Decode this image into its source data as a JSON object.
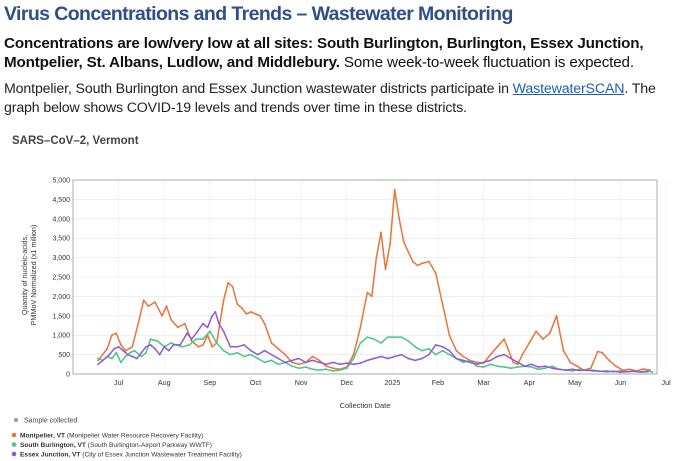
{
  "header": {
    "title": "Virus Concentrations and Trends – Wastewater Monitoring",
    "summary_bold": "Concentrations are low/very low at all sites: South Burlington, Burlington, Essex Junction, Montpelier, St. Albans, Ludlow, and Middlebury.",
    "summary_normal": " Some week-to-week fluctuation is expected.",
    "para_text1": "Montpelier, South Burlington and Essex Junction wastewater districts participate in ",
    "para_link": "WastewaterSCAN",
    "para_text2": ". The graph below shows COVID-19 levels and trends over time in these districts."
  },
  "colors": {
    "title": "#2f4e8a",
    "link": "#1a5fb4",
    "montpelier": "#e8743b",
    "south_burlington": "#4cc48a",
    "essex_junction": "#8e5bd6",
    "sample": "#9a9a9a"
  },
  "chart_data": {
    "type": "line",
    "title": "SARS–CoV–2, Vermont",
    "xlabel": "Collection Date",
    "ylabel": "Quantity of nucleic-acids, PMMoV Normalized (x1 million)",
    "ylim": [
      0,
      5000
    ],
    "yticks": [
      "0",
      "500",
      "1,000",
      "1,500",
      "2,000",
      "2,500",
      "3,000",
      "3,500",
      "4,000",
      "4,500",
      "5,000"
    ],
    "xticks": [
      "Jul",
      "Aug",
      "Sep",
      "Oct",
      "Nov",
      "Dec",
      "2025",
      "Feb",
      "Mar",
      "Apr",
      "May",
      "Jun",
      "Jul"
    ],
    "x_unit": "months since 2024-06-01",
    "grid": true,
    "legend": {
      "placement": "bottom-left",
      "sample_label": "Sample collected",
      "entries": [
        {
          "bold": "Montpelier, VT",
          "detail": "(Montpelier Water Resource Recovery Facility)"
        },
        {
          "bold": "South Burlington, VT",
          "detail": "(South Burlington-Airport Parkway WWTF)"
        },
        {
          "bold": "Essex Junction, VT",
          "detail": "(City of Essex Junction Wastewater Treatment Facility)"
        }
      ]
    },
    "series": [
      {
        "name": "Montpelier, VT",
        "points": [
          [
            0.55,
            350
          ],
          [
            0.75,
            650
          ],
          [
            0.85,
            1000
          ],
          [
            0.95,
            1050
          ],
          [
            1.05,
            750
          ],
          [
            1.15,
            600
          ],
          [
            1.3,
            700
          ],
          [
            1.45,
            1400
          ],
          [
            1.55,
            1900
          ],
          [
            1.65,
            1750
          ],
          [
            1.8,
            1850
          ],
          [
            1.95,
            1500
          ],
          [
            2.05,
            1750
          ],
          [
            2.15,
            1400
          ],
          [
            2.3,
            1200
          ],
          [
            2.45,
            1300
          ],
          [
            2.6,
            850
          ],
          [
            2.75,
            700
          ],
          [
            2.85,
            750
          ],
          [
            2.95,
            1000
          ],
          [
            3.05,
            700
          ],
          [
            3.15,
            800
          ],
          [
            3.3,
            1900
          ],
          [
            3.4,
            2350
          ],
          [
            3.5,
            2250
          ],
          [
            3.6,
            1800
          ],
          [
            3.7,
            1700
          ],
          [
            3.8,
            1550
          ],
          [
            3.9,
            1600
          ],
          [
            4.0,
            1550
          ],
          [
            4.1,
            1500
          ],
          [
            4.2,
            1300
          ],
          [
            4.35,
            800
          ],
          [
            4.5,
            650
          ],
          [
            4.65,
            500
          ],
          [
            4.8,
            300
          ],
          [
            4.95,
            250
          ],
          [
            5.1,
            300
          ],
          [
            5.25,
            450
          ],
          [
            5.4,
            350
          ],
          [
            5.55,
            200
          ],
          [
            5.7,
            150
          ],
          [
            5.85,
            120
          ],
          [
            6.0,
            180
          ],
          [
            6.15,
            500
          ],
          [
            6.3,
            1200
          ],
          [
            6.45,
            2100
          ],
          [
            6.55,
            2000
          ],
          [
            6.65,
            3000
          ],
          [
            6.75,
            3650
          ],
          [
            6.85,
            2700
          ],
          [
            6.95,
            3350
          ],
          [
            7.05,
            4750
          ],
          [
            7.15,
            4000
          ],
          [
            7.25,
            3400
          ],
          [
            7.35,
            3150
          ],
          [
            7.45,
            2900
          ],
          [
            7.55,
            2800
          ],
          [
            7.65,
            2850
          ],
          [
            7.8,
            2900
          ],
          [
            7.95,
            2600
          ],
          [
            8.1,
            1800
          ],
          [
            8.25,
            1000
          ],
          [
            8.4,
            600
          ],
          [
            8.55,
            450
          ],
          [
            8.7,
            350
          ],
          [
            8.85,
            300
          ],
          [
            9.0,
            280
          ],
          [
            9.15,
            500
          ],
          [
            9.3,
            700
          ],
          [
            9.45,
            900
          ],
          [
            9.55,
            600
          ],
          [
            9.65,
            300
          ],
          [
            9.75,
            250
          ],
          [
            9.85,
            500
          ],
          [
            10.0,
            800
          ],
          [
            10.15,
            1100
          ],
          [
            10.3,
            900
          ],
          [
            10.45,
            1050
          ],
          [
            10.6,
            1500
          ],
          [
            10.75,
            600
          ],
          [
            10.9,
            300
          ],
          [
            11.05,
            200
          ],
          [
            11.2,
            100
          ],
          [
            11.35,
            150
          ],
          [
            11.5,
            580
          ],
          [
            11.6,
            550
          ],
          [
            11.75,
            350
          ],
          [
            11.9,
            200
          ],
          [
            12.05,
            100
          ],
          [
            12.2,
            120
          ],
          [
            12.35,
            80
          ],
          [
            12.5,
            130
          ],
          [
            12.65,
            100
          ]
        ]
      },
      {
        "name": "South Burlington, VT",
        "points": [
          [
            0.55,
            400
          ],
          [
            0.65,
            350
          ],
          [
            0.75,
            450
          ],
          [
            0.85,
            400
          ],
          [
            0.95,
            550
          ],
          [
            1.05,
            300
          ],
          [
            1.15,
            450
          ],
          [
            1.25,
            550
          ],
          [
            1.35,
            600
          ],
          [
            1.5,
            450
          ],
          [
            1.6,
            550
          ],
          [
            1.7,
            900
          ],
          [
            1.85,
            850
          ],
          [
            2.0,
            700
          ],
          [
            2.15,
            800
          ],
          [
            2.25,
            750
          ],
          [
            2.4,
            700
          ],
          [
            2.55,
            750
          ],
          [
            2.7,
            900
          ],
          [
            2.85,
            900
          ],
          [
            3.0,
            1100
          ],
          [
            3.15,
            800
          ],
          [
            3.3,
            600
          ],
          [
            3.45,
            500
          ],
          [
            3.6,
            550
          ],
          [
            3.75,
            450
          ],
          [
            3.9,
            500
          ],
          [
            4.05,
            400
          ],
          [
            4.2,
            300
          ],
          [
            4.35,
            350
          ],
          [
            4.5,
            250
          ],
          [
            4.65,
            300
          ],
          [
            4.8,
            200
          ],
          [
            4.95,
            150
          ],
          [
            5.1,
            180
          ],
          [
            5.25,
            120
          ],
          [
            5.4,
            100
          ],
          [
            5.55,
            120
          ],
          [
            5.7,
            80
          ],
          [
            5.85,
            100
          ],
          [
            6.0,
            150
          ],
          [
            6.15,
            400
          ],
          [
            6.3,
            800
          ],
          [
            6.45,
            950
          ],
          [
            6.6,
            900
          ],
          [
            6.75,
            800
          ],
          [
            6.9,
            950
          ],
          [
            7.05,
            950
          ],
          [
            7.2,
            950
          ],
          [
            7.35,
            850
          ],
          [
            7.5,
            700
          ],
          [
            7.65,
            600
          ],
          [
            7.8,
            650
          ],
          [
            7.95,
            500
          ],
          [
            8.1,
            600
          ],
          [
            8.25,
            500
          ],
          [
            8.4,
            400
          ],
          [
            8.55,
            300
          ],
          [
            8.7,
            350
          ],
          [
            8.85,
            200
          ],
          [
            9.0,
            180
          ],
          [
            9.15,
            250
          ],
          [
            9.3,
            200
          ],
          [
            9.45,
            180
          ],
          [
            9.6,
            150
          ],
          [
            9.75,
            180
          ],
          [
            9.9,
            200
          ],
          [
            10.05,
            180
          ],
          [
            10.2,
            120
          ],
          [
            10.35,
            150
          ],
          [
            10.5,
            200
          ],
          [
            10.65,
            120
          ],
          [
            10.8,
            100
          ],
          [
            10.95,
            80
          ],
          [
            11.1,
            120
          ],
          [
            11.25,
            90
          ],
          [
            11.4,
            100
          ],
          [
            11.55,
            70
          ],
          [
            11.7,
            80
          ],
          [
            11.85,
            60
          ],
          [
            12.0,
            80
          ],
          [
            12.15,
            60
          ],
          [
            12.3,
            70
          ],
          [
            12.45,
            60
          ],
          [
            12.6,
            80
          ],
          [
            12.7,
            50
          ]
        ]
      },
      {
        "name": "Essex Junction, VT",
        "points": [
          [
            0.55,
            250
          ],
          [
            0.65,
            350
          ],
          [
            0.8,
            500
          ],
          [
            0.9,
            650
          ],
          [
            1.0,
            700
          ],
          [
            1.1,
            600
          ],
          [
            1.2,
            500
          ],
          [
            1.3,
            450
          ],
          [
            1.4,
            400
          ],
          [
            1.5,
            550
          ],
          [
            1.6,
            700
          ],
          [
            1.7,
            750
          ],
          [
            1.8,
            650
          ],
          [
            1.9,
            500
          ],
          [
            2.0,
            700
          ],
          [
            2.1,
            600
          ],
          [
            2.2,
            750
          ],
          [
            2.35,
            750
          ],
          [
            2.5,
            1050
          ],
          [
            2.6,
            900
          ],
          [
            2.7,
            1050
          ],
          [
            2.85,
            1300
          ],
          [
            2.95,
            1200
          ],
          [
            3.05,
            1500
          ],
          [
            3.12,
            1600
          ],
          [
            3.2,
            1300
          ],
          [
            3.3,
            1100
          ],
          [
            3.45,
            700
          ],
          [
            3.6,
            700
          ],
          [
            3.75,
            750
          ],
          [
            3.9,
            600
          ],
          [
            4.05,
            500
          ],
          [
            4.2,
            600
          ],
          [
            4.35,
            500
          ],
          [
            4.5,
            400
          ],
          [
            4.65,
            300
          ],
          [
            4.8,
            350
          ],
          [
            4.95,
            400
          ],
          [
            5.1,
            300
          ],
          [
            5.25,
            350
          ],
          [
            5.4,
            300
          ],
          [
            5.55,
            250
          ],
          [
            5.7,
            300
          ],
          [
            5.85,
            250
          ],
          [
            6.0,
            280
          ],
          [
            6.15,
            250
          ],
          [
            6.3,
            280
          ],
          [
            6.45,
            350
          ],
          [
            6.6,
            400
          ],
          [
            6.75,
            450
          ],
          [
            6.9,
            400
          ],
          [
            7.05,
            450
          ],
          [
            7.2,
            500
          ],
          [
            7.35,
            400
          ],
          [
            7.5,
            350
          ],
          [
            7.65,
            400
          ],
          [
            7.8,
            500
          ],
          [
            7.95,
            750
          ],
          [
            8.1,
            700
          ],
          [
            8.25,
            600
          ],
          [
            8.4,
            400
          ],
          [
            8.55,
            350
          ],
          [
            8.7,
            300
          ],
          [
            8.85,
            250
          ],
          [
            9.0,
            300
          ],
          [
            9.15,
            350
          ],
          [
            9.3,
            450
          ],
          [
            9.45,
            500
          ],
          [
            9.6,
            400
          ],
          [
            9.75,
            300
          ],
          [
            9.9,
            200
          ],
          [
            10.05,
            250
          ],
          [
            10.2,
            180
          ],
          [
            10.35,
            200
          ],
          [
            10.5,
            150
          ],
          [
            10.65,
            120
          ],
          [
            10.8,
            100
          ],
          [
            10.95,
            120
          ],
          [
            11.1,
            90
          ],
          [
            11.25,
            100
          ],
          [
            11.4,
            80
          ],
          [
            11.55,
            70
          ],
          [
            11.7,
            60
          ],
          [
            11.85,
            70
          ],
          [
            12.0,
            50
          ],
          [
            12.15,
            60
          ],
          [
            12.3,
            70
          ],
          [
            12.45,
            50
          ],
          [
            12.6,
            60
          ]
        ]
      }
    ]
  }
}
